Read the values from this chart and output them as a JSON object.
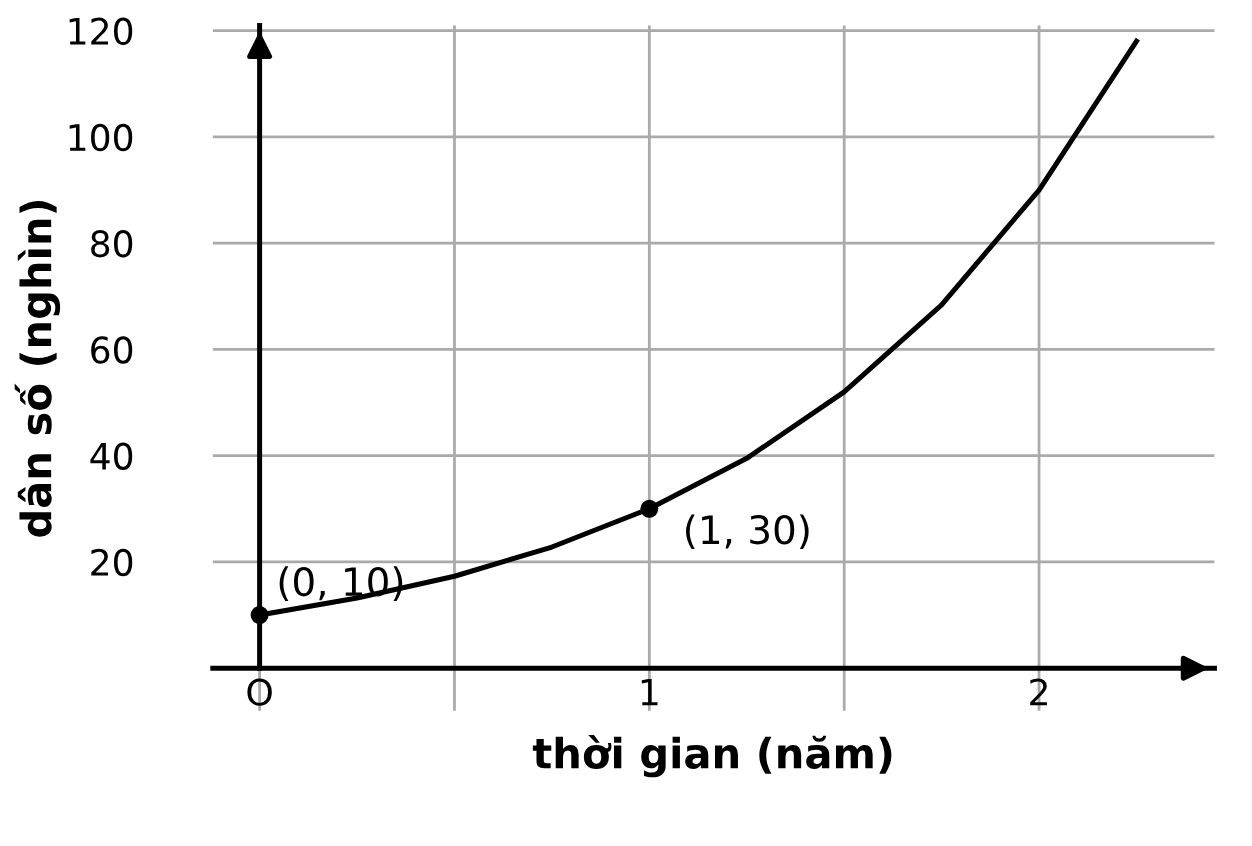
{
  "chart_data": {
    "type": "line",
    "xlabel": "thời gian (năm)",
    "ylabel": "dân số (nghìn)",
    "xlim": [
      -0.12,
      2.45
    ],
    "ylim": [
      -8,
      121
    ],
    "xticks": [
      {
        "value": 0,
        "label": "O"
      },
      {
        "value": 0.5,
        "label": null
      },
      1,
      {
        "value": 1.5,
        "label": null
      },
      2
    ],
    "yticks": [
      20,
      40,
      60,
      80,
      100,
      120
    ],
    "grid": true,
    "series": [
      {
        "color": "#000000",
        "marker": "none",
        "x": [
          0,
          0.25,
          0.5,
          0.75,
          1,
          1.25,
          1.5,
          1.75,
          2,
          2.25
        ],
        "values": [
          10,
          13.2,
          17.3,
          22.8,
          30,
          39.5,
          52,
          68.4,
          90,
          118
        ]
      },
      {
        "type": "scatter",
        "color": "#000000",
        "marker": "circle",
        "x": [
          0,
          1
        ],
        "values": [
          10,
          30
        ]
      }
    ],
    "annotations": [
      {
        "text": "(0, 10)",
        "x": 0,
        "y": 10
      },
      {
        "text": "(1, 30)",
        "x": 1,
        "y": 30
      }
    ]
  }
}
